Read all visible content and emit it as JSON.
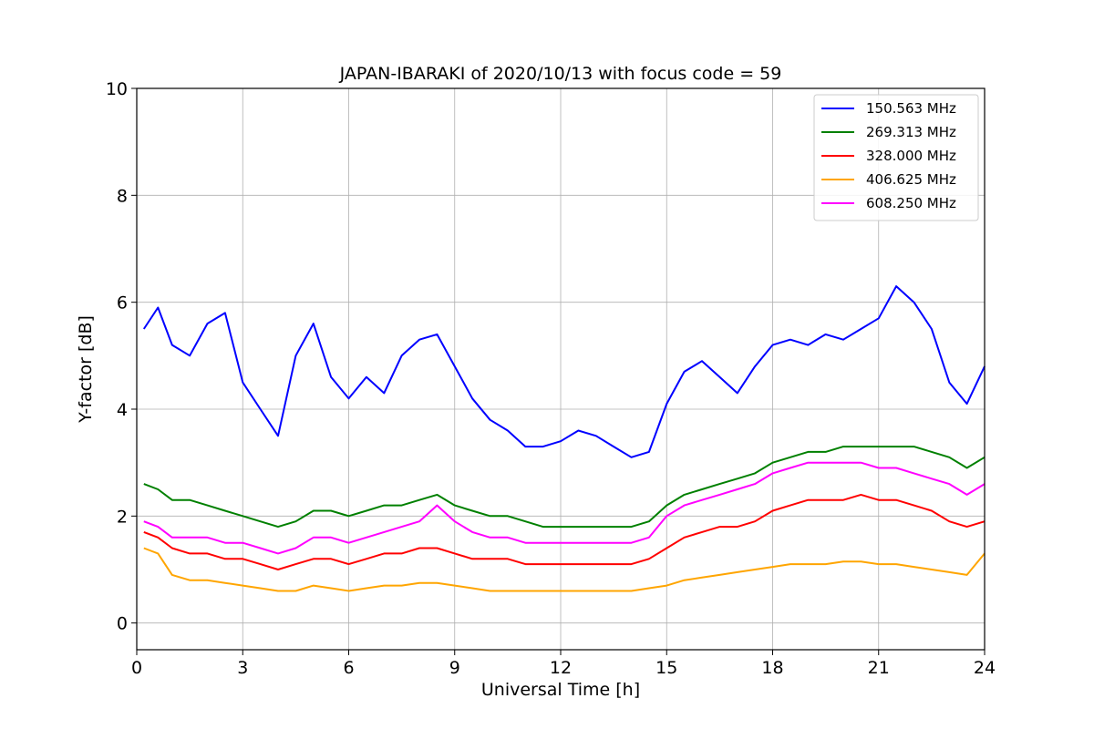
{
  "chart_data": {
    "type": "line",
    "title": "JAPAN-IBARAKI of 2020/10/13 with focus code = 59",
    "xlabel": "Universal Time [h]",
    "ylabel": "Y-factor [dB]",
    "xlim": [
      0,
      24
    ],
    "ylim": [
      -0.5,
      10
    ],
    "xticks": [
      0,
      3,
      6,
      9,
      12,
      15,
      18,
      21,
      24
    ],
    "yticks": [
      0,
      2,
      4,
      6,
      8,
      10
    ],
    "grid": true,
    "legend_position": "top-right",
    "series": [
      {
        "name": "150.563 MHz",
        "color": "#0000ff",
        "x": [
          0.2,
          0.6,
          1.0,
          1.5,
          2.0,
          2.5,
          3.0,
          3.5,
          4.0,
          4.5,
          5.0,
          5.5,
          6.0,
          6.5,
          7.0,
          7.5,
          8.0,
          8.5,
          9.0,
          9.5,
          10.0,
          10.5,
          11.0,
          11.5,
          12.0,
          12.5,
          13.0,
          13.5,
          14.0,
          14.5,
          15.0,
          15.5,
          16.0,
          16.5,
          17.0,
          17.5,
          18.0,
          18.5,
          19.0,
          19.5,
          20.0,
          20.5,
          21.0,
          21.5,
          22.0,
          22.5,
          23.0,
          23.5,
          24.0
        ],
        "y": [
          5.5,
          5.9,
          5.2,
          5.0,
          5.6,
          5.8,
          4.5,
          4.0,
          3.5,
          5.0,
          5.6,
          4.6,
          4.2,
          4.6,
          4.3,
          5.0,
          5.3,
          5.4,
          4.8,
          4.2,
          3.8,
          3.6,
          3.3,
          3.3,
          3.4,
          3.6,
          3.5,
          3.3,
          3.1,
          3.2,
          4.1,
          4.7,
          4.9,
          4.6,
          4.3,
          4.8,
          5.2,
          5.3,
          5.2,
          5.4,
          5.3,
          5.5,
          5.7,
          6.3,
          6.0,
          5.5,
          4.5,
          4.1,
          4.8
        ]
      },
      {
        "name": "269.313 MHz",
        "color": "#008000",
        "x": [
          0.2,
          0.6,
          1.0,
          1.5,
          2.0,
          2.5,
          3.0,
          3.5,
          4.0,
          4.5,
          5.0,
          5.5,
          6.0,
          6.5,
          7.0,
          7.5,
          8.0,
          8.5,
          9.0,
          9.5,
          10.0,
          10.5,
          11.0,
          11.5,
          12.0,
          12.5,
          13.0,
          13.5,
          14.0,
          14.5,
          15.0,
          15.5,
          16.0,
          16.5,
          17.0,
          17.5,
          18.0,
          18.5,
          19.0,
          19.5,
          20.0,
          20.5,
          21.0,
          21.5,
          22.0,
          22.5,
          23.0,
          23.5,
          24.0
        ],
        "y": [
          2.6,
          2.5,
          2.3,
          2.3,
          2.2,
          2.1,
          2.0,
          1.9,
          1.8,
          1.9,
          2.1,
          2.1,
          2.0,
          2.1,
          2.2,
          2.2,
          2.3,
          2.4,
          2.2,
          2.1,
          2.0,
          2.0,
          1.9,
          1.8,
          1.8,
          1.8,
          1.8,
          1.8,
          1.8,
          1.9,
          2.2,
          2.4,
          2.5,
          2.6,
          2.7,
          2.8,
          3.0,
          3.1,
          3.2,
          3.2,
          3.3,
          3.3,
          3.3,
          3.3,
          3.3,
          3.2,
          3.1,
          2.9,
          3.1
        ]
      },
      {
        "name": "328.000 MHz",
        "color": "#ff0000",
        "x": [
          0.2,
          0.6,
          1.0,
          1.5,
          2.0,
          2.5,
          3.0,
          3.5,
          4.0,
          4.5,
          5.0,
          5.5,
          6.0,
          6.5,
          7.0,
          7.5,
          8.0,
          8.5,
          9.0,
          9.5,
          10.0,
          10.5,
          11.0,
          11.5,
          12.0,
          12.5,
          13.0,
          13.5,
          14.0,
          14.5,
          15.0,
          15.5,
          16.0,
          16.5,
          17.0,
          17.5,
          18.0,
          18.5,
          19.0,
          19.5,
          20.0,
          20.5,
          21.0,
          21.5,
          22.0,
          22.5,
          23.0,
          23.5,
          24.0
        ],
        "y": [
          1.7,
          1.6,
          1.4,
          1.3,
          1.3,
          1.2,
          1.2,
          1.1,
          1.0,
          1.1,
          1.2,
          1.2,
          1.1,
          1.2,
          1.3,
          1.3,
          1.4,
          1.4,
          1.3,
          1.2,
          1.2,
          1.2,
          1.1,
          1.1,
          1.1,
          1.1,
          1.1,
          1.1,
          1.1,
          1.2,
          1.4,
          1.6,
          1.7,
          1.8,
          1.8,
          1.9,
          2.1,
          2.2,
          2.3,
          2.3,
          2.3,
          2.4,
          2.3,
          2.3,
          2.2,
          2.1,
          1.9,
          1.8,
          1.9
        ]
      },
      {
        "name": "406.625 MHz",
        "color": "#ffa500",
        "x": [
          0.2,
          0.6,
          1.0,
          1.5,
          2.0,
          2.5,
          3.0,
          3.5,
          4.0,
          4.5,
          5.0,
          5.5,
          6.0,
          6.5,
          7.0,
          7.5,
          8.0,
          8.5,
          9.0,
          9.5,
          10.0,
          10.5,
          11.0,
          11.5,
          12.0,
          12.5,
          13.0,
          13.5,
          14.0,
          14.5,
          15.0,
          15.5,
          16.0,
          16.5,
          17.0,
          17.5,
          18.0,
          18.5,
          19.0,
          19.5,
          20.0,
          20.5,
          21.0,
          21.5,
          22.0,
          22.5,
          23.0,
          23.5,
          24.0
        ],
        "y": [
          1.4,
          1.3,
          0.9,
          0.8,
          0.8,
          0.75,
          0.7,
          0.65,
          0.6,
          0.6,
          0.7,
          0.65,
          0.6,
          0.65,
          0.7,
          0.7,
          0.75,
          0.75,
          0.7,
          0.65,
          0.6,
          0.6,
          0.6,
          0.6,
          0.6,
          0.6,
          0.6,
          0.6,
          0.6,
          0.65,
          0.7,
          0.8,
          0.85,
          0.9,
          0.95,
          1.0,
          1.05,
          1.1,
          1.1,
          1.1,
          1.15,
          1.15,
          1.1,
          1.1,
          1.05,
          1.0,
          0.95,
          0.9,
          1.3
        ]
      },
      {
        "name": "608.250 MHz",
        "color": "#ff00ff",
        "x": [
          0.2,
          0.6,
          1.0,
          1.5,
          2.0,
          2.5,
          3.0,
          3.5,
          4.0,
          4.5,
          5.0,
          5.5,
          6.0,
          6.5,
          7.0,
          7.5,
          8.0,
          8.5,
          9.0,
          9.5,
          10.0,
          10.5,
          11.0,
          11.5,
          12.0,
          12.5,
          13.0,
          13.5,
          14.0,
          14.5,
          15.0,
          15.5,
          16.0,
          16.5,
          17.0,
          17.5,
          18.0,
          18.5,
          19.0,
          19.5,
          20.0,
          20.5,
          21.0,
          21.5,
          22.0,
          22.5,
          23.0,
          23.5,
          24.0
        ],
        "y": [
          1.9,
          1.8,
          1.6,
          1.6,
          1.6,
          1.5,
          1.5,
          1.4,
          1.3,
          1.4,
          1.6,
          1.6,
          1.5,
          1.6,
          1.7,
          1.8,
          1.9,
          2.2,
          1.9,
          1.7,
          1.6,
          1.6,
          1.5,
          1.5,
          1.5,
          1.5,
          1.5,
          1.5,
          1.5,
          1.6,
          2.0,
          2.2,
          2.3,
          2.4,
          2.5,
          2.6,
          2.8,
          2.9,
          3.0,
          3.0,
          3.0,
          3.0,
          2.9,
          2.9,
          2.8,
          2.7,
          2.6,
          2.4,
          2.6
        ]
      }
    ]
  }
}
